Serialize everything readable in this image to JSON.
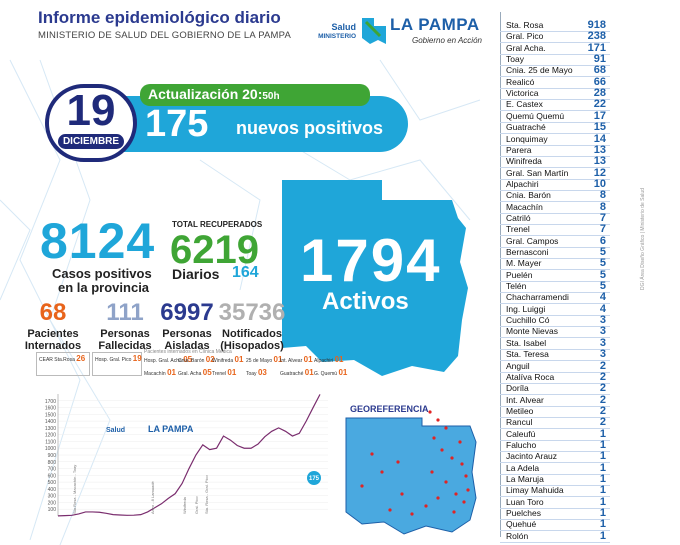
{
  "header": {
    "title": "Informe epidemiológico diario",
    "subtitle": "MINISTERIO DE SALUD DEL GOBIERNO DE LA PAMPA",
    "logo_salud": "Salud",
    "logo_ministerio": "MINISTERIO",
    "logo_name": "LA PAMPA",
    "logo_tagline": "Gobierno en Acción"
  },
  "update": {
    "label": "Actualización 20:",
    "minutes": "50h",
    "day": "19",
    "month": "DICIEMBRE",
    "new_positive_count": "175",
    "new_positive_label": "nuevos positivos"
  },
  "totals": {
    "cases": "8124",
    "cases_label_1": "Casos positivos",
    "cases_label_2": "en la provincia",
    "recovered_header": "TOTAL RECUPERADOS",
    "recovered": "6219",
    "daily_label": "Diarios",
    "daily_recovered": "164",
    "active": "1794",
    "active_label": "Activos"
  },
  "stats": [
    {
      "value": "68",
      "label_1": "Pacientes",
      "label_2": "Internados",
      "color": "#e8641b"
    },
    {
      "value": "111",
      "label_1": "Personas",
      "label_2": "Fallecidas",
      "color": "#8fa3c8"
    },
    {
      "value": "6997",
      "label_1": "Personas",
      "label_2": "Aisladas",
      "color": "#2b3a8f"
    },
    {
      "value": "35736",
      "label_1": "Notificados",
      "label_2": "(Hisopados)",
      "color": "#b0b0b0"
    }
  ],
  "mini": {
    "cear": "CEAR Sta.Rosa",
    "cear_val": "26",
    "hosp": "Hosp. Gral. Pico",
    "hosp_val": "19",
    "strip_title": "Pacientes internados en Clínica Médica",
    "strip_items": [
      {
        "name": "Hosp. Gral. Acha",
        "val": "05"
      },
      {
        "name": "Cnia. Barón",
        "val": "02"
      },
      {
        "name": "Winifreda",
        "val": "01"
      },
      {
        "name": "25 de Mayo",
        "val": "01"
      },
      {
        "name": "Int. Alvear",
        "val": "01"
      },
      {
        "name": "Alpachiri",
        "val": "01"
      },
      {
        "name": "Macachín",
        "val": "01"
      },
      {
        "name": "Gral. Acha",
        "val": "05"
      },
      {
        "name": "Trenel",
        "val": "01"
      },
      {
        "name": "Toay",
        "val": "03"
      },
      {
        "name": "Guatraché",
        "val": "01"
      },
      {
        "name": "G. Quemú",
        "val": "01"
      }
    ]
  },
  "chart_data": {
    "type": "line",
    "title": "",
    "xlabel": "",
    "ylabel": "",
    "ylim": [
      0,
      1800
    ],
    "y_ticks": [
      "100",
      "200",
      "300",
      "400",
      "500",
      "600",
      "700",
      "800",
      "900",
      "1000",
      "1100",
      "1200",
      "1300",
      "1400",
      "1500",
      "1600",
      "1700"
    ],
    "series": [
      {
        "values": [
          2,
          5,
          10,
          30,
          60,
          60,
          55,
          40,
          20,
          15,
          10,
          12,
          20,
          60,
          120,
          180,
          260,
          330,
          480,
          700,
          900,
          1050,
          980,
          1000,
          1180,
          1120,
          1040,
          1000,
          1000,
          1060,
          1170,
          1250,
          1300,
          1250,
          1180,
          1220,
          1400,
          1600,
          1794
        ]
      }
    ],
    "marker_label": "175",
    "annotation_texts": [
      "Sta.Rosa - Macachín - Toay",
      "Anzo - 8 Lamuadé",
      "Winifreda",
      "Gral. Pico",
      "Sta. Rosa - Gral. Pico"
    ]
  },
  "georef": {
    "title": "GEOREFERENCIA"
  },
  "localities": [
    {
      "name": "Sta. Rosa",
      "value": "918"
    },
    {
      "name": "Gral. Pico",
      "value": "238"
    },
    {
      "name": "Gral Acha.",
      "value": "171"
    },
    {
      "name": "Toay",
      "value": "91"
    },
    {
      "name": "Cnia. 25 de Mayo",
      "value": "68"
    },
    {
      "name": "Realicó",
      "value": "66"
    },
    {
      "name": "Victorica",
      "value": "28"
    },
    {
      "name": "E. Castex",
      "value": "22"
    },
    {
      "name": "Quemú Quemú",
      "value": "17"
    },
    {
      "name": "Guatraché",
      "value": "15"
    },
    {
      "name": "Lonquimay",
      "value": "14"
    },
    {
      "name": "Parera",
      "value": "13"
    },
    {
      "name": "Winifreda",
      "value": "13"
    },
    {
      "name": "Gral. San Martín",
      "value": "12"
    },
    {
      "name": "Alpachiri",
      "value": "10"
    },
    {
      "name": "Cnia. Barón",
      "value": "8"
    },
    {
      "name": "Macachín",
      "value": "8"
    },
    {
      "name": "Catriló",
      "value": "7"
    },
    {
      "name": "Trenel",
      "value": "7"
    },
    {
      "name": "Gral. Campos",
      "value": "6"
    },
    {
      "name": "Bernasconi",
      "value": "5"
    },
    {
      "name": "M. Mayer",
      "value": "5"
    },
    {
      "name": "Puelén",
      "value": "5"
    },
    {
      "name": "Telén",
      "value": "5"
    },
    {
      "name": "Chacharramendi",
      "value": "4"
    },
    {
      "name": "Ing. Luiggi",
      "value": "4"
    },
    {
      "name": "Cuchillo Có",
      "value": "3"
    },
    {
      "name": "Monte Nievas",
      "value": "3"
    },
    {
      "name": "Sta. Isabel",
      "value": "3"
    },
    {
      "name": "Sta. Teresa",
      "value": "3"
    },
    {
      "name": "Anguil",
      "value": "2"
    },
    {
      "name": "Atalíva Roca",
      "value": "2"
    },
    {
      "name": "Doríla",
      "value": "2"
    },
    {
      "name": "Int. Alvear",
      "value": "2"
    },
    {
      "name": "Metileo",
      "value": "2"
    },
    {
      "name": "Rancul",
      "value": "2"
    },
    {
      "name": "Caleufú",
      "value": "1"
    },
    {
      "name": "Falucho",
      "value": "1"
    },
    {
      "name": "Jacinto Arauz",
      "value": "1"
    },
    {
      "name": "La Adela",
      "value": "1"
    },
    {
      "name": "La Maruja",
      "value": "1"
    },
    {
      "name": "Limay Mahuida",
      "value": "1"
    },
    {
      "name": "Luan Toro",
      "value": "1"
    },
    {
      "name": "Puelches",
      "value": "1"
    },
    {
      "name": "Quehué",
      "value": "1"
    },
    {
      "name": "Rolón",
      "value": "1"
    }
  ],
  "credit": "DGI Área Diseño Gráfico | Ministerio de Salud",
  "colors": {
    "navy": "#1f2a7a",
    "cyan": "#1fa6d9",
    "green": "#3fa535",
    "orange": "#e8641b"
  }
}
